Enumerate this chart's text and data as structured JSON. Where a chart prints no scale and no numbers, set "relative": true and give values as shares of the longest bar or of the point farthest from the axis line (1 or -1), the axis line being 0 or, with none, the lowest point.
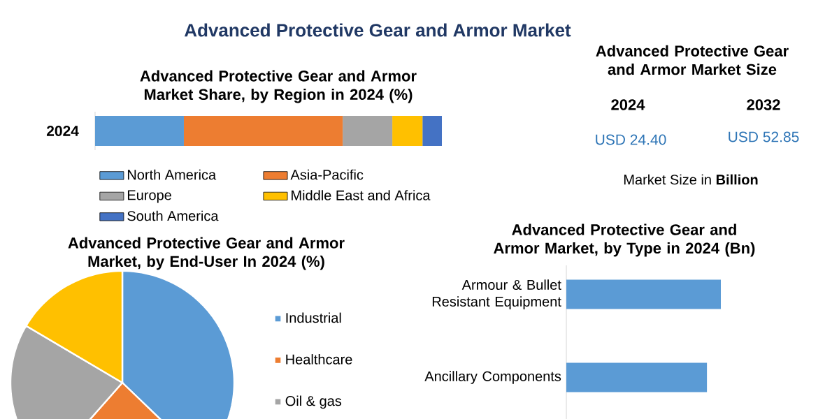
{
  "chart_data": [
    {
      "type": "other",
      "title": "Advanced Protective Gear and Armor Market"
    },
    {
      "type": "bar",
      "title": "Advanced Protective Gear and Armor Market Share, by Region in 2024 (%)",
      "orientation": "horizontal",
      "stacked": true,
      "relative": true,
      "legend": "bottom",
      "categories": [
        "2024"
      ],
      "series": [
        {
          "name": "North America",
          "color": "#5b9bd5",
          "values": [
            0.256
          ]
        },
        {
          "name": "Asia-Pacific",
          "color": "#ed7d31",
          "values": [
            0.458
          ]
        },
        {
          "name": "Europe",
          "color": "#a5a5a5",
          "values": [
            0.143
          ]
        },
        {
          "name": "Middle East and Africa",
          "color": "#ffc000",
          "values": [
            0.087
          ]
        },
        {
          "name": "South America",
          "color": "#4472c4",
          "values": [
            0.056
          ]
        }
      ]
    },
    {
      "type": "other",
      "title": "Advanced Protective Gear and Armor Market Size",
      "annotations": [
        "2024",
        "2032",
        "USD 24.40",
        "USD 52.85",
        "Market Size in **Billion**"
      ]
    },
    {
      "type": "pie",
      "title": "Advanced Protective Gear and Armor Market, by End-User In 2024 (%)",
      "legend": "right",
      "categories": [
        "Industrial",
        "Healthcare",
        "Oil & gas",
        null
      ],
      "values": [
        37.2,
        24.3,
        22.0,
        16.5
      ],
      "colors": [
        "#5b9bd5",
        "#ed7d31",
        "#a5a5a5",
        "#ffc000"
      ]
    },
    {
      "type": "bar",
      "title": "Advanced Protective Gear and Armor Market, by Type in 2024 (Bn)",
      "orientation": "horizontal",
      "relative": true,
      "categories": [
        "Armour & Bullet Resistant Equipment",
        "Ancillary Components"
      ],
      "values": [
        1,
        0.91
      ],
      "color": "#5b9bd5"
    }
  ]
}
